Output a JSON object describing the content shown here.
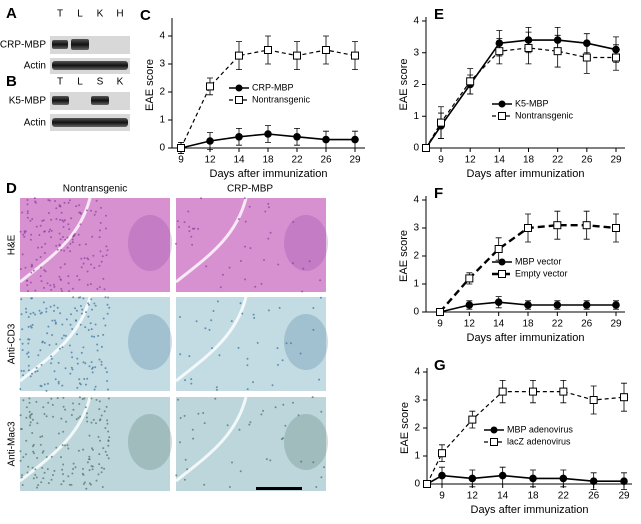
{
  "blots": [
    {
      "letter": "A",
      "lanes": [
        "T",
        "L",
        "K",
        "H"
      ],
      "rows": [
        "CRP-MBP",
        "Actin"
      ]
    },
    {
      "letter": "B",
      "lanes": [
        "T",
        "L",
        "S",
        "K"
      ],
      "rows": [
        "K5-MBP",
        "Actin"
      ]
    }
  ],
  "histology": {
    "letter": "D",
    "columns": [
      "Nontransgenic",
      "CRP-MBP"
    ],
    "rows": [
      "H&E",
      "Anti-CD3",
      "Anti-Mac3"
    ]
  },
  "chart_data": [
    {
      "type": "line",
      "panel": "C",
      "y_label": "EAE score",
      "x_label": "Days after immunization",
      "categories": [
        "9",
        "12",
        "14",
        "18",
        "22",
        "26",
        "29"
      ],
      "ylim": [
        0,
        4.5
      ],
      "yticks": [
        0,
        1,
        2,
        3,
        4
      ],
      "series": [
        {
          "name": "CRP-MBP",
          "color": "#000000",
          "marker": "circle",
          "line_style": "solid",
          "values": [
            0,
            0.25,
            0.4,
            0.5,
            0.4,
            0.3,
            0.3
          ],
          "errors": [
            0.2,
            0.3,
            0.3,
            0.3,
            0.3,
            0.3,
            0.3
          ]
        },
        {
          "name": "Nontransgenic",
          "color": "#000000",
          "marker": "square",
          "line_style": "dashed",
          "values": [
            0,
            2.2,
            3.3,
            3.5,
            3.3,
            3.5,
            3.3
          ],
          "errors": [
            0.2,
            0.3,
            0.5,
            0.5,
            0.5,
            0.5,
            0.5
          ]
        }
      ]
    },
    {
      "type": "line",
      "panel": "E",
      "y_label": "EAE score",
      "x_label": "Days after immunization",
      "categories": [
        null,
        "9",
        "12",
        "14",
        "18",
        "22",
        "26",
        "29"
      ],
      "ylim": [
        0,
        4
      ],
      "yticks": [
        0,
        1,
        2,
        3,
        4
      ],
      "series": [
        {
          "name": "K5-MBP",
          "color": "#000000",
          "marker": "circle",
          "line_style": "solid",
          "values": [
            0,
            0.7,
            2.0,
            3.3,
            3.4,
            3.4,
            3.3,
            3.1
          ],
          "errors": [
            0,
            0.4,
            0.3,
            0.4,
            0.4,
            0.4,
            0.3,
            0.4
          ]
        },
        {
          "name": "Nontransgenic",
          "color": "#000000",
          "marker": "square",
          "line_style": "dashed",
          "values": [
            0,
            0.8,
            2.1,
            3.05,
            3.15,
            3.05,
            2.85,
            2.85
          ],
          "errors": [
            0,
            0.5,
            0.4,
            0.4,
            0.5,
            0.5,
            0.5,
            0.4
          ]
        }
      ]
    },
    {
      "type": "line",
      "panel": "F",
      "y_label": "EAE score",
      "x_label": "Days after immunization",
      "categories": [
        "9",
        "12",
        "14",
        "18",
        "22",
        "26",
        "29"
      ],
      "ylim": [
        0,
        4
      ],
      "yticks": [
        0,
        1,
        2,
        3,
        4
      ],
      "series": [
        {
          "name": "MBP vector",
          "color": "#000000",
          "marker": "circle",
          "line_style": "solid",
          "values": [
            0,
            0.25,
            0.35,
            0.25,
            0.25,
            0.25,
            0.25
          ],
          "errors": [
            0,
            0.15,
            0.2,
            0.15,
            0.15,
            0.15,
            0.15
          ]
        },
        {
          "name": "Empty  vector",
          "color": "#000000",
          "marker": "square",
          "line_style": "bold-dashed",
          "values": [
            0,
            1.2,
            2.25,
            3.0,
            3.1,
            3.1,
            3.0
          ],
          "errors": [
            0,
            0.2,
            0.4,
            0.5,
            0.5,
            0.5,
            0.5
          ]
        }
      ]
    },
    {
      "type": "line",
      "panel": "G",
      "y_label": "EAE score",
      "x_label": "Days after immunization",
      "categories": [
        null,
        "9",
        "12",
        "14",
        "18",
        "22",
        "26",
        "29"
      ],
      "ylim": [
        0,
        4
      ],
      "yticks": [
        0,
        1,
        2,
        3,
        4
      ],
      "series": [
        {
          "name": "MBP adenovirus",
          "color": "#000000",
          "marker": "circle",
          "line_style": "solid",
          "values": [
            0,
            0.3,
            0.2,
            0.3,
            0.2,
            0.2,
            0.1,
            0.1
          ],
          "errors": [
            0,
            0.3,
            0.3,
            0.3,
            0.3,
            0.3,
            0.3,
            0.3
          ]
        },
        {
          "name": "lacZ adenovirus",
          "color": "#000000",
          "marker": "square",
          "line_style": "dashed",
          "values": [
            0,
            1.1,
            2.3,
            3.3,
            3.3,
            3.3,
            3.0,
            3.1
          ],
          "errors": [
            0,
            0.3,
            0.3,
            0.4,
            0.4,
            0.4,
            0.5,
            0.5
          ]
        }
      ]
    }
  ]
}
